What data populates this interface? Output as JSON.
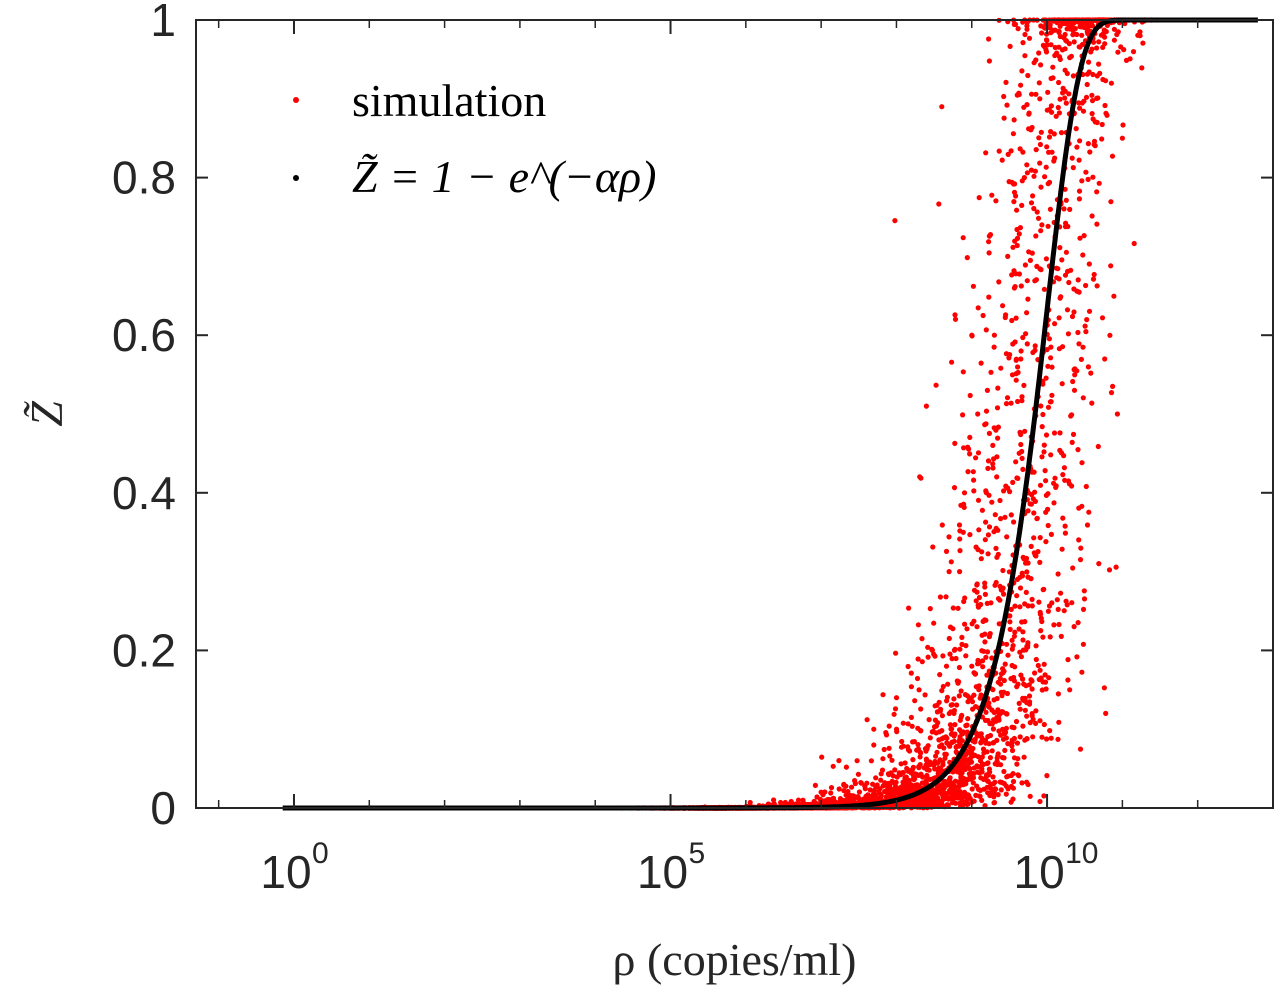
{
  "chart_data": {
    "type": "scatter",
    "title": "",
    "xlabel": "ρ (copies/ml)",
    "ylabel": "Z̃",
    "xscale": "log",
    "xlim": [
      0.05,
      10000000000000.0
    ],
    "ylim": [
      0,
      1
    ],
    "grid": false,
    "legend_position": "top-left",
    "x_ticks": [
      {
        "value": 1,
        "base": "10",
        "exp": "0"
      },
      {
        "value": 100000,
        "base": "10",
        "exp": "5"
      },
      {
        "value": 10000000000,
        "base": "10",
        "exp": "10"
      }
    ],
    "y_ticks": [
      {
        "value": 0,
        "label": "0"
      },
      {
        "value": 0.2,
        "label": "0.2"
      },
      {
        "value": 0.4,
        "label": "0.4"
      },
      {
        "value": 0.6,
        "label": "0.6"
      },
      {
        "value": 0.8,
        "label": "0.8"
      },
      {
        "value": 1,
        "label": "1"
      }
    ],
    "series": [
      {
        "name": "simulation",
        "color": "#ff0000",
        "marker": "dot",
        "points": [
          [
            2000000.0,
            0.005
          ],
          [
            5000000.0,
            0.01
          ],
          [
            10000000.0,
            0.02
          ],
          [
            20000000.0,
            0.03
          ],
          [
            30000000.0,
            0.06
          ],
          [
            50000000.0,
            0.08
          ],
          [
            100000000.0,
            0.1
          ],
          [
            200000000.0,
            0.15
          ],
          [
            300000000.0,
            0.2
          ],
          [
            500000000.0,
            0.3
          ],
          [
            800000000.0,
            0.4
          ],
          [
            1200000000.0,
            0.5
          ],
          [
            2000000000.0,
            0.6
          ],
          [
            3000000000.0,
            0.7
          ],
          [
            5000000000.0,
            0.8
          ],
          [
            8000000000.0,
            0.9
          ],
          [
            15000000000.0,
            0.95
          ],
          [
            30000000000.0,
            1.0
          ],
          [
            400000000.0,
            0.89
          ],
          [
            1000000000.0,
            0.6
          ],
          [
            250000000.0,
            0.51
          ],
          [
            100000000000.0,
            0.85
          ],
          [
            60000000000.0,
            0.12
          ],
          [
            20000000000.0,
            0.15
          ],
          [
            100000000.0,
            0.14
          ],
          [
            50000000.0,
            0.1
          ]
        ]
      },
      {
        "name": "Z̃ = 1 − e^(−αρ)",
        "color": "#000000",
        "marker": "line",
        "alpha": 1e-10
      }
    ]
  },
  "legend": {
    "items": [
      {
        "label": "simulation",
        "color": "#ff0000"
      },
      {
        "label": "Z̃ = 1 − e^(−αρ)",
        "color": "#000000"
      }
    ]
  }
}
